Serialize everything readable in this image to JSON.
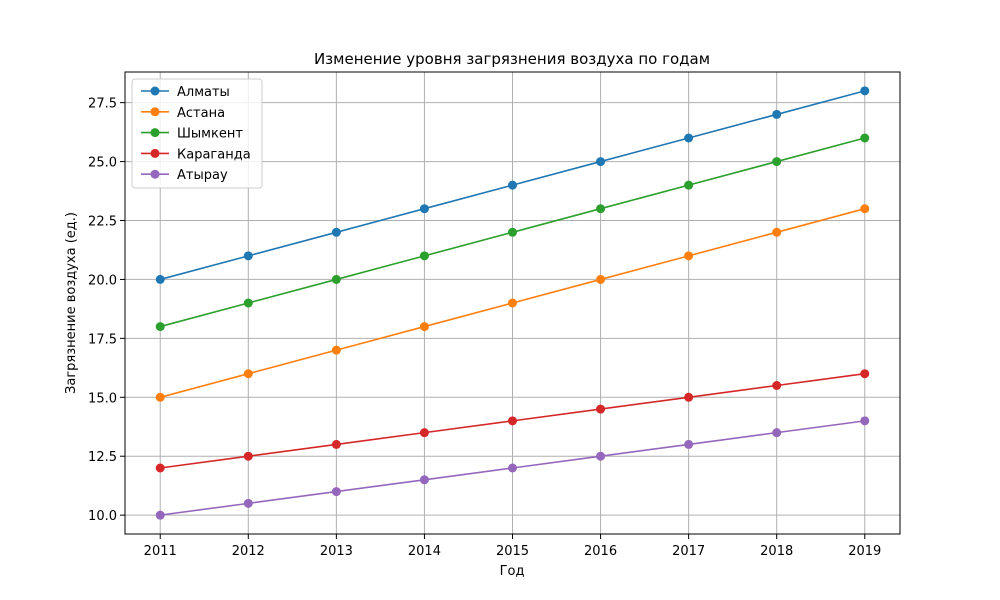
{
  "chart_data": {
    "type": "line",
    "title": "Изменение уровня загрязнения воздуха по годам",
    "xlabel": "Год",
    "ylabel": "Загрязнение воздуха (ед.)",
    "x": [
      2011,
      2012,
      2013,
      2014,
      2015,
      2016,
      2017,
      2018,
      2019
    ],
    "x_tick_labels": [
      "2011",
      "2012",
      "2013",
      "2014",
      "2015",
      "2016",
      "2017",
      "2018",
      "2019"
    ],
    "xlim": [
      2010.6,
      2019.4
    ],
    "ylim": [
      9.2,
      28.8
    ],
    "y_ticks": [
      10.0,
      12.5,
      15.0,
      17.5,
      20.0,
      22.5,
      25.0,
      27.5
    ],
    "y_tick_labels": [
      "10.0",
      "12.5",
      "15.0",
      "17.5",
      "20.0",
      "22.5",
      "25.0",
      "27.5"
    ],
    "grid": true,
    "legend_position": "top-left",
    "series": [
      {
        "name": "Алматы",
        "color": "#1f77b4",
        "values": [
          20,
          21,
          22,
          23,
          24,
          25,
          26,
          27,
          28
        ]
      },
      {
        "name": "Астана",
        "color": "#ff7f0e",
        "values": [
          15,
          16,
          17,
          18,
          19,
          20,
          21,
          22,
          23
        ]
      },
      {
        "name": "Шымкент",
        "color": "#2ca02c",
        "values": [
          18,
          19,
          20,
          21,
          22,
          23,
          24,
          25,
          26
        ]
      },
      {
        "name": "Караганда",
        "color": "#d62728",
        "values": [
          12,
          12.5,
          13,
          13.5,
          14,
          14.5,
          15,
          15.5,
          16
        ]
      },
      {
        "name": "Атырау",
        "color": "#9467bd",
        "values": [
          10,
          10.5,
          11,
          11.5,
          12,
          12.5,
          13,
          13.5,
          14
        ]
      }
    ]
  }
}
